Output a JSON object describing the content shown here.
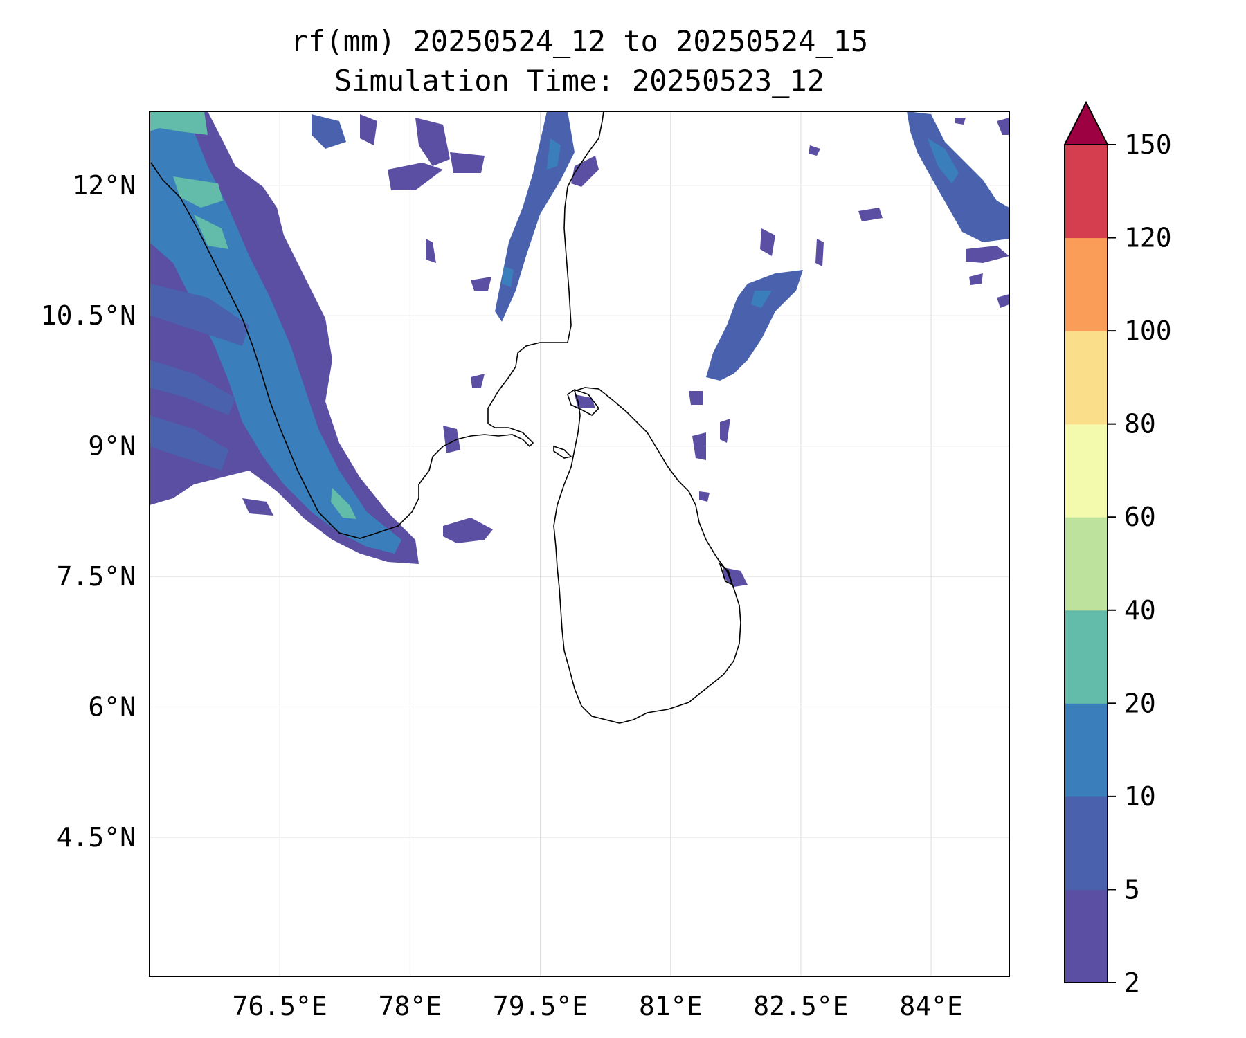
{
  "title": {
    "line1": "rf(mm) 20250524_12 to 20250524_15",
    "line2": "Simulation Time: 20250523_12"
  },
  "map": {
    "lon_range": [
      75.0,
      84.9
    ],
    "lat_range": [
      2.9,
      12.85
    ],
    "lon_ticks": [
      {
        "value": 76.5,
        "label": "76.5°E"
      },
      {
        "value": 78.0,
        "label": "78°E"
      },
      {
        "value": 79.5,
        "label": "79.5°E"
      },
      {
        "value": 81.0,
        "label": "81°E"
      },
      {
        "value": 82.5,
        "label": "82.5°E"
      },
      {
        "value": 84.0,
        "label": "84°E"
      }
    ],
    "lat_ticks": [
      {
        "value": 12.0,
        "label": "12°N"
      },
      {
        "value": 10.5,
        "label": "10.5°N"
      },
      {
        "value": 9.0,
        "label": "9°N"
      },
      {
        "value": 7.5,
        "label": "7.5°N"
      },
      {
        "value": 6.0,
        "label": "6°N"
      },
      {
        "value": 4.5,
        "label": "4.5°N"
      }
    ],
    "grid": true,
    "coastline_color": "#000000"
  },
  "colorbar": {
    "levels": [
      {
        "value": 2,
        "label": "2"
      },
      {
        "value": 5,
        "label": "5"
      },
      {
        "value": 10,
        "label": "10"
      },
      {
        "value": 20,
        "label": "20"
      },
      {
        "value": 40,
        "label": "40"
      },
      {
        "value": 60,
        "label": "60"
      },
      {
        "value": 80,
        "label": "80"
      },
      {
        "value": 100,
        "label": "100"
      },
      {
        "value": 120,
        "label": "120"
      },
      {
        "value": 150,
        "label": "150"
      }
    ],
    "colors": [
      "#5a4fa3",
      "#4a62ad",
      "#3a7fbb",
      "#63bba9",
      "#bde29e",
      "#f3f9ad",
      "#fbde89",
      "#f99d59",
      "#d53e4f"
    ],
    "extend_color": "#9e0142",
    "extend": "max"
  },
  "rain_colors": {
    "c2": "#5a4fa3",
    "c5": "#4a62ad",
    "c10": "#3a7fbb",
    "c20": "#63bba9"
  }
}
